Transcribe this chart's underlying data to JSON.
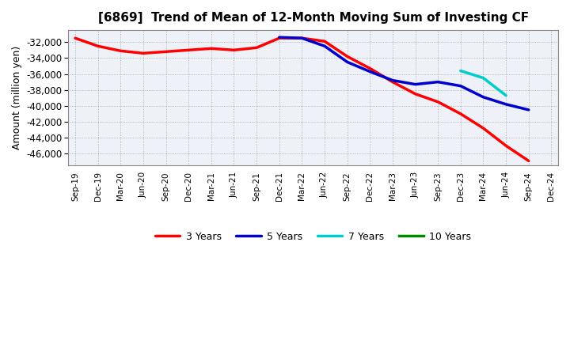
{
  "title": "[6869]  Trend of Mean of 12-Month Moving Sum of Investing CF",
  "ylabel": "Amount (million yen)",
  "background_color": "#ffffff",
  "plot_background": "#eef2f8",
  "grid_color": "#999999",
  "ylim": [
    -47500,
    -30500
  ],
  "yticks": [
    -32000,
    -34000,
    -36000,
    -38000,
    -40000,
    -42000,
    -44000,
    -46000
  ],
  "series": {
    "3yr": {
      "color": "#ff0000",
      "label": "3 Years",
      "x": [
        "Sep-19",
        "Dec-19",
        "Mar-20",
        "Jun-20",
        "Sep-20",
        "Dec-20",
        "Mar-21",
        "Jun-21",
        "Sep-21",
        "Dec-21",
        "Mar-22",
        "Jun-22",
        "Sep-22",
        "Dec-22",
        "Mar-23",
        "Jun-23",
        "Sep-23",
        "Dec-23",
        "Mar-24",
        "Jun-24",
        "Sep-24"
      ],
      "y": [
        -31500,
        -32500,
        -33100,
        -33400,
        -33200,
        -33000,
        -32800,
        -33000,
        -32700,
        -31500,
        -31500,
        -31900,
        -33800,
        -35300,
        -37000,
        -38500,
        -39500,
        -41000,
        -42800,
        -45000,
        -46900
      ]
    },
    "5yr": {
      "color": "#0000cc",
      "label": "5 Years",
      "x": [
        "Dec-21",
        "Mar-22",
        "Jun-22",
        "Sep-22",
        "Dec-22",
        "Mar-23",
        "Jun-23",
        "Sep-23",
        "Dec-23",
        "Mar-24",
        "Jun-24",
        "Sep-24"
      ],
      "y": [
        -31400,
        -31500,
        -32500,
        -34500,
        -35700,
        -36800,
        -37300,
        -37000,
        -37500,
        -38900,
        -39800,
        -40500
      ]
    },
    "7yr": {
      "color": "#00cccc",
      "label": "7 Years",
      "x": [
        "Dec-23",
        "Mar-24",
        "Jun-24"
      ],
      "y": [
        -35600,
        -36500,
        -38700
      ]
    },
    "10yr": {
      "color": "#008800",
      "label": "10 Years",
      "x": [],
      "y": []
    }
  },
  "x_tick_labels": [
    "Sep-19",
    "Dec-19",
    "Mar-20",
    "Jun-20",
    "Sep-20",
    "Dec-20",
    "Mar-21",
    "Jun-21",
    "Sep-21",
    "Dec-21",
    "Mar-22",
    "Jun-22",
    "Sep-22",
    "Dec-22",
    "Mar-23",
    "Jun-23",
    "Sep-23",
    "Dec-23",
    "Mar-24",
    "Jun-24",
    "Sep-24",
    "Dec-24"
  ]
}
